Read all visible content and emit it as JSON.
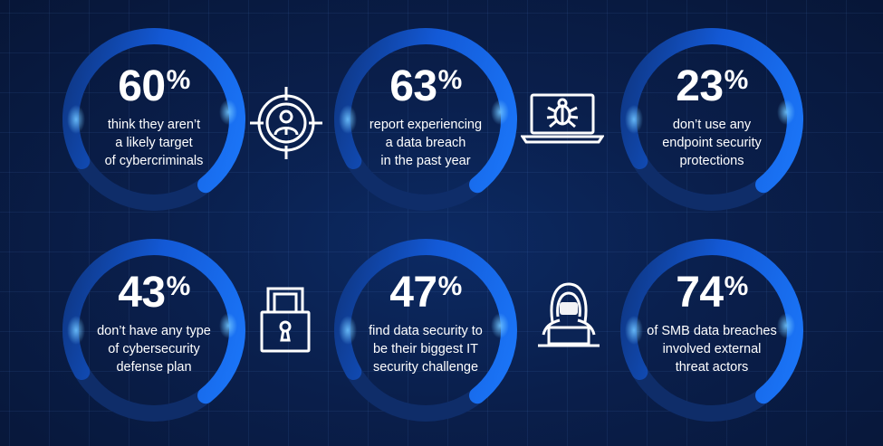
{
  "stats": [
    {
      "value": "60",
      "unit": "%",
      "lines": "think they aren’t\na likely target\nof cybercriminals"
    },
    {
      "value": "63",
      "unit": "%",
      "lines": "report experiencing\na data breach\nin the past year"
    },
    {
      "value": "23",
      "unit": "%",
      "lines": "don’t use any\nendpoint security\nprotections"
    },
    {
      "value": "43",
      "unit": "%",
      "lines": "don’t have any type\nof cybersecurity\ndefense plan"
    },
    {
      "value": "47",
      "unit": "%",
      "lines": "find data security to\nbe their biggest IT\nsecurity challenge"
    },
    {
      "value": "74",
      "unit": "%",
      "lines": "of SMB data breaches\ninvolved external\nthreat actors"
    }
  ],
  "icons": [
    "target-user-icon",
    "laptop-bug-icon",
    "padlock-icon",
    "hooded-hacker-icon"
  ],
  "colors": {
    "background": "#0a1f4c",
    "ring_blue": "#1c7bff",
    "ring_dark": "#10357d",
    "text": "#ffffff"
  }
}
